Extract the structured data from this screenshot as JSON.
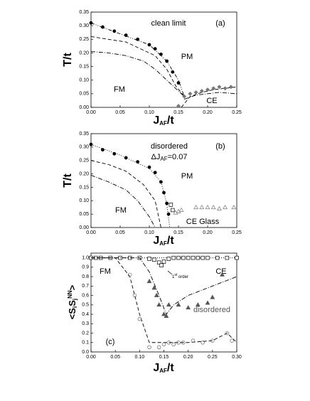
{
  "chart_data": [
    {
      "type": "scatter-line",
      "annotations": {
        "label": "clean limit",
        "panel": "(a)",
        "pm": "PM",
        "fm": "FM",
        "ce": "CE"
      },
      "ylabel": "T/t",
      "xlabel": [
        "J",
        "AF",
        "/t"
      ],
      "xlim": [
        0,
        0.25
      ],
      "ylim": [
        0,
        0.35
      ],
      "xticks": [
        {
          "value": 0,
          "label": "0.00"
        },
        {
          "value": 0.05,
          "label": "0.05"
        },
        {
          "value": 0.1,
          "label": "0.10"
        },
        {
          "value": 0.15,
          "label": "0.15"
        },
        {
          "value": 0.2,
          "label": "0.20"
        },
        {
          "value": 0.25,
          "label": "0.25"
        }
      ],
      "yticks": [
        {
          "value": 0,
          "label": "0.00"
        },
        {
          "value": 0.05,
          "label": "0.05"
        },
        {
          "value": 0.1,
          "label": "0.10"
        },
        {
          "value": 0.15,
          "label": "0.15"
        },
        {
          "value": 0.2,
          "label": "0.20"
        },
        {
          "value": 0.25,
          "label": "0.25"
        },
        {
          "value": 0.3,
          "label": "0.30"
        },
        {
          "value": 0.35,
          "label": "0.35"
        }
      ],
      "series": [
        {
          "line": "dash-dot-dot",
          "color": "#000",
          "x": [
            0,
            0.05,
            0.1,
            0.13,
            0.15,
            0.16
          ],
          "values": [
            0.31,
            0.27,
            0.23,
            0.17,
            0.1,
            0.04
          ]
        },
        {
          "marker": "circle-filled",
          "color": "#000",
          "x": [
            0,
            0.02,
            0.04,
            0.06,
            0.08,
            0.1,
            0.11,
            0.12,
            0.13,
            0.14,
            0.15
          ],
          "values": [
            0.31,
            0.295,
            0.28,
            0.265,
            0.25,
            0.23,
            0.215,
            0.195,
            0.17,
            0.13,
            0.09
          ]
        },
        {
          "line": "dashed",
          "color": "#000",
          "x": [
            0,
            0.03,
            0.06,
            0.09,
            0.11,
            0.13,
            0.145,
            0.16
          ],
          "values": [
            0.26,
            0.25,
            0.24,
            0.21,
            0.19,
            0.14,
            0.08,
            0.04
          ]
        },
        {
          "line": "dash-dot",
          "color": "#000",
          "x": [
            0,
            0.03,
            0.06,
            0.09,
            0.11,
            0.13,
            0.15,
            0.16
          ],
          "values": [
            0.205,
            0.2,
            0.19,
            0.17,
            0.14,
            0.1,
            0.06,
            0.04
          ]
        },
        {
          "line": "dashed",
          "color": "#000",
          "x": [
            0.155,
            0.17,
            0.19,
            0.21,
            0.23,
            0.25
          ],
          "values": [
            0,
            0.04,
            0.055,
            0.065,
            0.07,
            0.075
          ]
        },
        {
          "line": "dash-dot",
          "color": "#000",
          "x": [
            0.16,
            0.18,
            0.2,
            0.22,
            0.25
          ],
          "values": [
            0.03,
            0.045,
            0.05,
            0.055,
            0.05
          ]
        },
        {
          "marker": "diamond-filled",
          "color": "#777",
          "x": [
            0.15,
            0.16,
            0.17,
            0.18,
            0.19,
            0.2,
            0.21,
            0.22,
            0.23,
            0.24
          ],
          "values": [
            0.005,
            0.04,
            0.05,
            0.055,
            0.06,
            0.065,
            0.07,
            0.075,
            0.07,
            0.075
          ]
        }
      ]
    },
    {
      "type": "scatter-line",
      "annotations": {
        "label": "disordered",
        "delta": [
          "ΔJ",
          "AF",
          "=0.07"
        ],
        "panel": "(b)",
        "pm": "PM",
        "fm": "FM",
        "ce": "CE Glass"
      },
      "ylabel": "T/t",
      "xlabel": [
        "J",
        "AF",
        "/t"
      ],
      "xlim": [
        0,
        0.25
      ],
      "ylim": [
        0,
        0.35
      ],
      "xticks": [
        {
          "value": 0,
          "label": "0.00"
        },
        {
          "value": 0.05,
          "label": "0.05"
        },
        {
          "value": 0.1,
          "label": "0.10"
        },
        {
          "value": 0.15,
          "label": "0.15"
        },
        {
          "value": 0.2,
          "label": "0.20"
        },
        {
          "value": 0.25,
          "label": "0.25"
        }
      ],
      "yticks": [
        {
          "value": 0,
          "label": "0.00"
        },
        {
          "value": 0.05,
          "label": "0.05"
        },
        {
          "value": 0.1,
          "label": "0.10"
        },
        {
          "value": 0.15,
          "label": "0.15"
        },
        {
          "value": 0.2,
          "label": "0.20"
        },
        {
          "value": 0.25,
          "label": "0.25"
        },
        {
          "value": 0.3,
          "label": "0.30"
        },
        {
          "value": 0.35,
          "label": "0.35"
        }
      ],
      "series": [
        {
          "line": "dotted",
          "color": "#000",
          "x": [
            0,
            0.05,
            0.1,
            0.12,
            0.13,
            0.135
          ],
          "values": [
            0.31,
            0.27,
            0.22,
            0.17,
            0.09,
            0
          ]
        },
        {
          "marker": "circle-filled",
          "color": "#000",
          "x": [
            0,
            0.02,
            0.04,
            0.06,
            0.08,
            0.1,
            0.11,
            0.12,
            0.125,
            0.13,
            0.133
          ],
          "values": [
            0.31,
            0.29,
            0.275,
            0.26,
            0.245,
            0.225,
            0.205,
            0.17,
            0.13,
            0.09,
            0.05
          ]
        },
        {
          "marker": "square-open",
          "color": "#000",
          "x": [
            0.137,
            0.14
          ],
          "values": [
            0.085,
            0.065
          ]
        },
        {
          "line": "dashed",
          "color": "#000",
          "x": [
            0,
            0.03,
            0.06,
            0.09,
            0.11,
            0.12
          ],
          "values": [
            0.25,
            0.235,
            0.21,
            0.16,
            0.1,
            0
          ]
        },
        {
          "line": "dash-dot",
          "color": "#000",
          "x": [
            0,
            0.03,
            0.06,
            0.08,
            0.1,
            0.11
          ],
          "values": [
            0.195,
            0.17,
            0.14,
            0.1,
            0.04,
            0
          ]
        },
        {
          "marker": "triangle-open",
          "color": "#777",
          "x": [
            0.145,
            0.15,
            0.155,
            0.18,
            0.19,
            0.2,
            0.21,
            0.22,
            0.23,
            0.245
          ],
          "values": [
            0.055,
            0.06,
            0.065,
            0.075,
            0.075,
            0.075,
            0.075,
            0.07,
            0.075,
            0.075
          ]
        }
      ]
    },
    {
      "type": "scatter-line",
      "annotations": {
        "fm": "FM",
        "ce": "CE",
        "label": "disordered",
        "panel": "(c)",
        "order": [
          "1",
          "st",
          " order"
        ]
      },
      "ylabel": [
        "<S",
        "i",
        "S",
        "j",
        "NN",
        ">"
      ],
      "xlabel": [
        "J",
        "AF",
        "/t"
      ],
      "xlim": [
        0,
        0.3
      ],
      "ylim": [
        0,
        1.05
      ],
      "xticks": [
        {
          "value": 0,
          "label": "0.00"
        },
        {
          "value": 0.05,
          "label": "0.05"
        },
        {
          "value": 0.1,
          "label": "0.10"
        },
        {
          "value": 0.15,
          "label": "0.15"
        },
        {
          "value": 0.2,
          "label": "0.20"
        },
        {
          "value": 0.25,
          "label": "0.25"
        },
        {
          "value": 0.3,
          "label": "0.30"
        }
      ],
      "yticks": [
        {
          "value": 0,
          "label": "0.0"
        },
        {
          "value": 0.1,
          "label": "0.1"
        },
        {
          "value": 0.2,
          "label": "0.2"
        },
        {
          "value": 0.3,
          "label": "0.3"
        },
        {
          "value": 0.4,
          "label": "0.4"
        },
        {
          "value": 0.5,
          "label": "0.5"
        },
        {
          "value": 0.6,
          "label": "0.6"
        },
        {
          "value": 0.7,
          "label": "0.7"
        },
        {
          "value": 0.8,
          "label": "0.8"
        },
        {
          "value": 0.9,
          "label": "0.9"
        },
        {
          "value": 1,
          "label": "1.0"
        }
      ],
      "series": [
        {
          "line": "dotted",
          "color": "#000",
          "x": [
            0,
            0.3
          ],
          "values": [
            1,
            1
          ]
        },
        {
          "marker": "square-open",
          "color": "#000",
          "x": [
            0,
            0.01,
            0.02,
            0.04,
            0.06,
            0.08,
            0.1,
            0.12,
            0.13,
            0.14,
            0.145,
            0.15,
            0.16,
            0.17,
            0.18,
            0.19,
            0.2,
            0.21,
            0.22,
            0.23,
            0.24,
            0.26,
            0.28,
            0.3
          ],
          "values": [
            1,
            1,
            1,
            1,
            1,
            1,
            1,
            0.99,
            0.98,
            0.95,
            0.92,
            0.96,
            0.99,
            1,
            1,
            1,
            1,
            1,
            1,
            1,
            1,
            1,
            1,
            1
          ]
        },
        {
          "line": "dashed",
          "color": "#000",
          "x": [
            0,
            0.05,
            0.08,
            0.1,
            0.12,
            0.15,
            0.2,
            0.25,
            0.28,
            0.3
          ],
          "values": [
            1,
            1,
            0.8,
            0.4,
            0.1,
            0.1,
            0.1,
            0.12,
            0.2,
            0.1
          ]
        },
        {
          "line": "dash-dot",
          "color": "#000",
          "x": [
            0,
            0.1,
            0.12,
            0.14,
            0.155,
            0.17,
            0.2,
            0.25,
            0.3
          ],
          "values": [
            1,
            1,
            0.85,
            0.6,
            0.4,
            0.5,
            0.6,
            0.7,
            0.8
          ]
        },
        {
          "marker": "triangle-filled",
          "color": "#555",
          "x": [
            0.12,
            0.13,
            0.135,
            0.14,
            0.15,
            0.155,
            0.16,
            0.18,
            0.2,
            0.22,
            0.24,
            0.25,
            0.27
          ],
          "values": [
            0.75,
            0.68,
            0.6,
            0.5,
            0.4,
            0.38,
            0.5,
            0.5,
            0.47,
            0.5,
            0.52,
            0.58,
            0.82
          ]
        },
        {
          "marker": "circle-open",
          "color": "#666",
          "x": [
            0.08,
            0.09,
            0.1,
            0.12,
            0.14,
            0.15,
            0.16,
            0.17,
            0.18,
            0.19,
            0.21,
            0.23,
            0.25,
            0.28,
            0.29
          ],
          "values": [
            0.82,
            0.6,
            0.35,
            0.05,
            0.05,
            0.08,
            0.1,
            0.08,
            0.1,
            0.1,
            0.12,
            0.1,
            0.12,
            0.2,
            0.12
          ]
        }
      ]
    }
  ]
}
